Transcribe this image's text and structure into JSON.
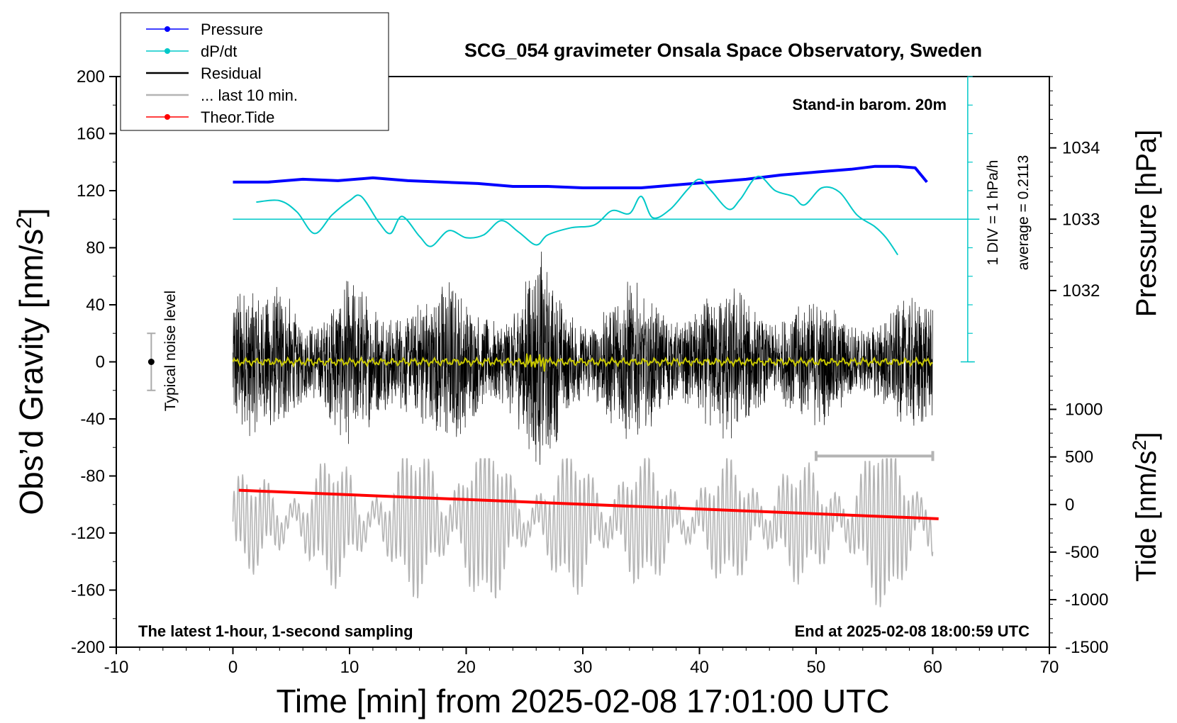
{
  "chart_data": {
    "type": "line",
    "title": "SCG_054 gravimeter Onsala Space Observatory, Sweden",
    "xlabel": "Time [min] from 2025-02-08 17:01:00 UTC",
    "ylabel": "Obs’d Gravity [nm/s",
    "ylabel_sup": "2",
    "ylabel_close": "]",
    "y2label": "Pressure [hPa]",
    "y3label": "Tide [nm/s",
    "y3label_sup": "2",
    "y3label_close": "]",
    "xlim": [
      -10,
      70
    ],
    "ylim": [
      -200,
      200
    ],
    "xticks": [
      -10,
      0,
      10,
      20,
      30,
      40,
      50,
      60,
      70
    ],
    "yticks": [
      200,
      160,
      120,
      80,
      40,
      0,
      -40,
      -80,
      -120,
      -160,
      -200
    ],
    "pressure_ticks": [
      1034,
      1033,
      1032
    ],
    "tide_ticks": [
      1000,
      500,
      0,
      -500,
      -1000,
      -1500
    ],
    "pressure_scale": {
      "ref_hPa": 1033,
      "ref_y": 100,
      "units_per_hPa": 50
    },
    "tide_scale": {
      "ref_value": 0,
      "ref_y": -100,
      "units_per_1000": 66.7
    },
    "legend": [
      {
        "label": "Pressure",
        "color": "#0000ff",
        "style": "line-dot"
      },
      {
        "label": "dP/dt",
        "color": "#00c8c8",
        "style": "line-dot"
      },
      {
        "label": "Residual",
        "color": "#000000",
        "style": "line"
      },
      {
        "label": "... last 10 min.",
        "color": "#b4b4b4",
        "style": "line"
      },
      {
        "label": "Theor.Tide",
        "color": "#ff0000",
        "style": "line-dot"
      }
    ],
    "annotations": {
      "barometer": "Stand-in barom. 20m",
      "dpdt_scale": "1 DIV = 1 hPa/h",
      "average": "average = 0.2113",
      "noise": "Typical noise level",
      "sampling": "The latest 1-hour, 1-second sampling",
      "end_time": "End at 2025-02-08 18:00:59 UTC"
    },
    "series": [
      {
        "name": "Pressure",
        "color": "#0000ff",
        "x": [
          0,
          3,
          6,
          9,
          12,
          15,
          18,
          21,
          24,
          27,
          30,
          32,
          35,
          38,
          41,
          44,
          47,
          50,
          53,
          55,
          57,
          58.5,
          59.5
        ],
        "y": [
          126,
          126,
          128,
          127,
          129,
          127,
          126,
          125,
          123,
          123,
          122,
          122,
          122,
          124,
          126,
          128,
          131,
          133,
          135,
          137,
          137,
          136,
          126
        ]
      },
      {
        "name": "dP/dt",
        "color": "#00c8c8",
        "x": [
          2,
          4,
          5.5,
          7,
          8.5,
          10,
          11,
          12.5,
          13.5,
          14.5,
          16,
          17,
          18.5,
          20,
          21.5,
          23,
          24.5,
          26,
          27,
          29,
          31,
          32.5,
          34,
          35,
          36,
          37.5,
          39,
          40,
          41,
          42.5,
          43.5,
          45,
          46.5,
          48,
          49,
          50.5,
          52,
          53.5,
          55,
          56,
          57
        ],
        "y": [
          112,
          113,
          105,
          90,
          103,
          113,
          116,
          98,
          90,
          102,
          88,
          81,
          92,
          87,
          89,
          99,
          91,
          82,
          89,
          94,
          96,
          106,
          104,
          116,
          101,
          107,
          121,
          128,
          120,
          107,
          114,
          130,
          120,
          116,
          110,
          122,
          119,
          103,
          95,
          87,
          75
        ]
      },
      {
        "name": "Residual",
        "color": "#000000",
        "x_range": [
          0,
          60
        ],
        "envelope": [
          70,
          50,
          80,
          45,
          60,
          55,
          70,
          55,
          65,
          60,
          55,
          85,
          55,
          55,
          60,
          55,
          60,
          55,
          60,
          55,
          55,
          45,
          45,
          50,
          50,
          50
        ]
      },
      {
        "name": "... last 10 min.",
        "color": "#b4b4b4",
        "x_range": [
          0,
          60
        ],
        "center": -112,
        "amplitude": [
          30,
          25,
          35,
          40,
          30,
          55,
          60,
          45,
          30,
          50,
          45,
          35,
          30,
          40,
          45,
          30,
          50,
          55,
          45
        ]
      },
      {
        "name": "Theor.Tide",
        "color": "#ff0000",
        "x": [
          0.5,
          60.5
        ],
        "y": [
          -90,
          -110
        ]
      },
      {
        "name": "Residual smoothed",
        "color": "#c8c800",
        "x_range": [
          0,
          60
        ],
        "y": 0
      }
    ],
    "noise_bar": {
      "x": -7,
      "y": 0,
      "range": [
        -20,
        20
      ]
    },
    "last10_bar": {
      "x": [
        50,
        60
      ],
      "y": -66
    },
    "dpdt_axis": {
      "x": 63,
      "baseline": 100,
      "div": 20
    }
  }
}
